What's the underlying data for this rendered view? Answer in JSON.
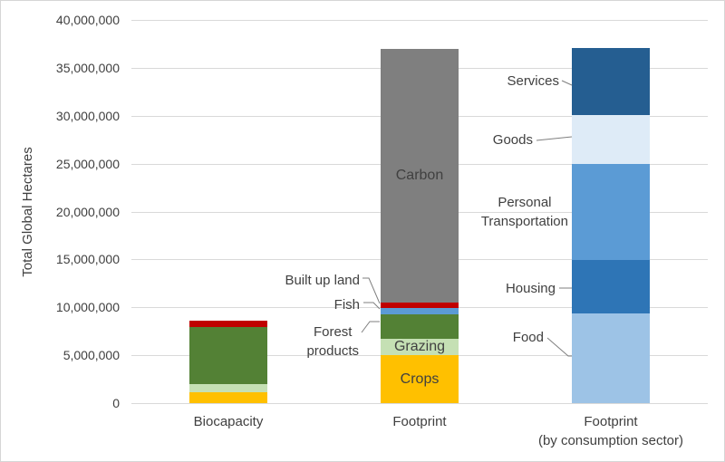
{
  "chart_data": {
    "type": "bar",
    "stacked": true,
    "title": "",
    "xlabel": "",
    "ylabel": "Total Global Hectares",
    "ylim": [
      0,
      40000000
    ],
    "grid": true,
    "legend": "none (labels attached to segments)",
    "yticks": [
      [
        0,
        "0"
      ],
      [
        5000000,
        "5,000,000"
      ],
      [
        10000000,
        "10,000,000"
      ],
      [
        15000000,
        "15,000,000"
      ],
      [
        20000000,
        "20,000,000"
      ],
      [
        25000000,
        "25,000,000"
      ],
      [
        30000000,
        "30,000,000"
      ],
      [
        35000000,
        "35,000,000"
      ],
      [
        40000000,
        "40,000,000"
      ]
    ],
    "colors": {
      "crops": "#FFC000",
      "grazing": "#C5E0B4",
      "forest_products": "#538135",
      "fish": "#5B9BD5",
      "built_up_land": "#C00000",
      "carbon": "#7F7F7F",
      "food": "#9DC3E6",
      "housing": "#2E75B6",
      "personal_transportation": "#5B9BD5",
      "goods": "#DEEBF7",
      "services": "#255E91",
      "gridline": "#D9D9D9",
      "leader_line": "#7F7F7F",
      "text": "#404040"
    },
    "bars": [
      {
        "category_lines": [
          "Biocapacity"
        ],
        "total": 8560000,
        "segments": [
          {
            "name": "crops",
            "value": 1130000,
            "color": "#FFC000",
            "label_lines": [],
            "label_placement": "none"
          },
          {
            "name": "grazing",
            "value": 860000,
            "color": "#C5E0B4",
            "label_lines": [],
            "label_placement": "none"
          },
          {
            "name": "forest-products",
            "value": 5960000,
            "color": "#538135",
            "label_lines": [],
            "label_placement": "none"
          },
          {
            "name": "built-up-land",
            "value": 610000,
            "color": "#C00000",
            "label_lines": [],
            "label_placement": "none"
          }
        ]
      },
      {
        "category_lines": [
          "Footprint"
        ],
        "total": 37000000,
        "segments": [
          {
            "name": "crops",
            "value": 5010000,
            "color": "#FFC000",
            "label_lines": [
              "Crops"
            ],
            "label_placement": "inside"
          },
          {
            "name": "grazing",
            "value": 1710000,
            "color": "#C5E0B4",
            "label_lines": [
              "Grazing"
            ],
            "label_placement": "inside"
          },
          {
            "name": "forest-products",
            "value": 2550000,
            "color": "#538135",
            "label_lines": [
              "Forest",
              "products"
            ],
            "label_placement": "callout"
          },
          {
            "name": "fish",
            "value": 660000,
            "color": "#5B9BD5",
            "label_lines": [
              "Fish"
            ],
            "label_placement": "callout"
          },
          {
            "name": "built-up-land",
            "value": 570000,
            "color": "#C00000",
            "label_lines": [
              "Built up land"
            ],
            "label_placement": "callout"
          },
          {
            "name": "carbon",
            "value": 26500000,
            "color": "#7F7F7F",
            "label_lines": [
              "Carbon"
            ],
            "label_placement": "inside"
          }
        ]
      },
      {
        "category_lines": [
          "Footprint",
          "(by consumption sector)"
        ],
        "total": 37040000,
        "segments": [
          {
            "name": "food",
            "value": 9370000,
            "color": "#9DC3E6",
            "label_lines": [
              "Food"
            ],
            "label_placement": "callout"
          },
          {
            "name": "housing",
            "value": 5580000,
            "color": "#2E75B6",
            "label_lines": [
              "Housing"
            ],
            "label_placement": "callout"
          },
          {
            "name": "personal-transportation",
            "value": 10030000,
            "color": "#5B9BD5",
            "label_lines": [
              "Personal",
              "Transportation"
            ],
            "label_placement": "callout"
          },
          {
            "name": "goods",
            "value": 5110000,
            "color": "#DEEBF7",
            "label_lines": [
              "Goods"
            ],
            "label_placement": "callout"
          },
          {
            "name": "services",
            "value": 6950000,
            "color": "#255E91",
            "label_lines": [
              "Services"
            ],
            "label_placement": "callout"
          }
        ]
      }
    ]
  }
}
